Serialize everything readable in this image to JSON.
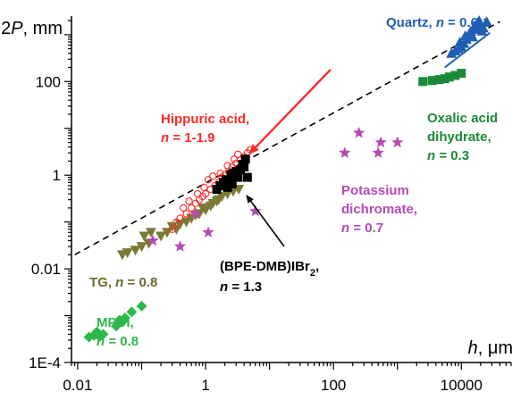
{
  "chart_data": {
    "type": "scatter",
    "title": "",
    "xlabel": {
      "symbol": "h",
      "unit": "μm"
    },
    "ylabel": {
      "symbol": "2P",
      "unit": "mm"
    },
    "x_scale": "log",
    "y_scale": "log",
    "xlim": [
      0.008,
      60000
    ],
    "ylim": [
      0.0001,
      2500
    ],
    "x_ticks": [
      {
        "value": 0.01,
        "label": "0.01"
      },
      {
        "value": 1,
        "label": "1"
      },
      {
        "value": 100,
        "label": "100"
      },
      {
        "value": 10000,
        "label": "10000"
      }
    ],
    "y_ticks": [
      {
        "value": 0.0001,
        "label": "1E-4"
      },
      {
        "value": 0.01,
        "label": "0.01"
      },
      {
        "value": 1,
        "label": "1"
      },
      {
        "value": 100,
        "label": "100"
      }
    ],
    "grid": false,
    "legend": "none",
    "reference_line": {
      "style": "dashed",
      "color": "#000000",
      "points": [
        [
          0.009,
          0.02
        ],
        [
          40000,
          1900
        ]
      ]
    },
    "series": [
      {
        "key": "mpdi",
        "marker": "diamond",
        "color": "#2db84a",
        "annotation": {
          "lines": [
            [
              "MPDI,"
            ],
            [
              "n",
              " = 0.8"
            ]
          ]
        },
        "points": [
          [
            0.015,
            0.00035
          ],
          [
            0.018,
            0.00038
          ],
          [
            0.022,
            0.00036
          ],
          [
            0.025,
            0.0004
          ],
          [
            0.02,
            0.00045
          ],
          [
            0.04,
            0.0006
          ],
          [
            0.045,
            0.0008
          ],
          [
            0.05,
            0.00075
          ],
          [
            0.055,
            0.0009
          ],
          [
            0.07,
            0.0012
          ],
          [
            0.1,
            0.0016
          ]
        ]
      },
      {
        "key": "tg",
        "marker": "triangle-down",
        "color": "#7a7a35",
        "annotation": {
          "lines": [
            [
              "TG, ",
              "n",
              " = 0.8"
            ]
          ]
        },
        "points": [
          [
            0.05,
            0.02
          ],
          [
            0.06,
            0.022
          ],
          [
            0.08,
            0.025
          ],
          [
            0.1,
            0.03
          ],
          [
            0.13,
            0.035
          ],
          [
            0.11,
            0.05
          ],
          [
            0.14,
            0.06
          ],
          [
            0.2,
            0.05
          ],
          [
            0.25,
            0.06
          ],
          [
            0.3,
            0.08
          ],
          [
            0.35,
            0.07
          ],
          [
            0.4,
            0.09
          ],
          [
            0.5,
            0.1
          ],
          [
            0.6,
            0.12
          ],
          [
            0.7,
            0.14
          ],
          [
            0.8,
            0.15
          ],
          [
            1,
            0.18
          ],
          [
            1.2,
            0.22
          ],
          [
            1.5,
            0.28
          ],
          [
            1.8,
            0.35
          ],
          [
            2.2,
            0.4
          ],
          [
            2.7,
            0.45
          ],
          [
            3.3,
            0.5
          ],
          [
            0.9,
            0.2
          ],
          [
            1.3,
            0.25
          ],
          [
            1.6,
            0.3
          ],
          [
            2.5,
            0.55
          ]
        ]
      },
      {
        "key": "hippuric",
        "marker": "circle-open",
        "color": "#ff2a2a",
        "annotation": {
          "lines": [
            [
              "Hippuric acid,"
            ],
            [
              "n",
              " = 1-1.9"
            ]
          ]
        },
        "line_segment": [
          [
            5,
            3
          ],
          [
            90,
            180
          ]
        ],
        "points": [
          [
            0.3,
            0.07
          ],
          [
            0.35,
            0.1
          ],
          [
            0.4,
            0.12
          ],
          [
            0.5,
            0.15
          ],
          [
            0.6,
            0.2
          ],
          [
            0.7,
            0.25
          ],
          [
            0.8,
            0.3
          ],
          [
            0.9,
            0.35
          ],
          [
            1,
            0.4
          ],
          [
            1.2,
            0.5
          ],
          [
            1.4,
            0.6
          ],
          [
            1.6,
            0.7
          ],
          [
            1.8,
            0.9
          ],
          [
            2,
            1
          ],
          [
            2.3,
            1.2
          ],
          [
            2.6,
            1.5
          ],
          [
            3,
            1.8
          ],
          [
            3.5,
            2.1
          ],
          [
            4,
            2.5
          ],
          [
            4.5,
            3
          ],
          [
            5,
            3.5
          ],
          [
            0.45,
            0.2
          ],
          [
            0.55,
            0.28
          ],
          [
            0.75,
            0.4
          ],
          [
            0.95,
            0.55
          ],
          [
            1.1,
            0.8
          ],
          [
            1.3,
            0.95
          ],
          [
            1.7,
            1.1
          ],
          [
            2.2,
            1.6
          ],
          [
            2.8,
            2.2
          ],
          [
            3.2,
            2.8
          ]
        ]
      },
      {
        "key": "bpe",
        "marker": "square",
        "color": "#000000",
        "annotation": {
          "lines": [
            [
              "(BPE-DMB)IBr",
              "2",
              ","
            ],
            [
              "n",
              " = 1.3"
            ]
          ]
        },
        "points": [
          [
            1.5,
            0.5
          ],
          [
            1.7,
            0.6
          ],
          [
            1.9,
            0.7
          ],
          [
            2.1,
            0.8
          ],
          [
            2.5,
            1
          ],
          [
            2.8,
            1.1
          ],
          [
            3,
            1.2
          ],
          [
            3.5,
            1.3
          ],
          [
            4,
            1.5
          ],
          [
            2.2,
            0.55
          ],
          [
            2.6,
            0.65
          ],
          [
            3.2,
            0.9
          ],
          [
            3.8,
            1.7
          ],
          [
            4.2,
            2.2
          ],
          [
            4.5,
            0.9
          ]
        ]
      },
      {
        "key": "potassium",
        "marker": "star",
        "color": "#b44bb4",
        "annotation": {
          "lines": [
            [
              "Potassium"
            ],
            [
              "dichromate,"
            ],
            [
              "n",
              " = 0.7"
            ]
          ]
        },
        "points": [
          [
            0.15,
            0.04
          ],
          [
            0.4,
            0.03
          ],
          [
            0.7,
            0.15
          ],
          [
            1.1,
            0.06
          ],
          [
            6,
            0.17
          ],
          [
            150,
            3
          ],
          [
            250,
            8
          ],
          [
            500,
            3
          ],
          [
            550,
            5
          ],
          [
            1000,
            5
          ]
        ]
      },
      {
        "key": "oxalic",
        "marker": "square",
        "color": "#1a8a3a",
        "annotation": {
          "lines": [
            [
              "Oxalic acid"
            ],
            [
              "dihydrate,"
            ],
            [
              "n",
              " = 0.3"
            ]
          ]
        },
        "points": [
          [
            2500,
            100
          ],
          [
            3500,
            105
          ],
          [
            4500,
            110
          ],
          [
            5500,
            115
          ],
          [
            6500,
            125
          ],
          [
            8000,
            135
          ],
          [
            10000,
            150
          ]
        ]
      },
      {
        "key": "quartz",
        "marker": "triangle-up",
        "color": "#1f5fb4",
        "annotation": {
          "lines": [
            [
              "Quartz, ",
              "n",
              " = 0.6-1"
            ]
          ]
        },
        "line_segment": [
          [
            5500,
            200
          ],
          [
            28000,
            1100
          ]
        ],
        "points": [
          [
            7000,
            400
          ],
          [
            8000,
            450
          ],
          [
            9000,
            500
          ],
          [
            10000,
            550
          ],
          [
            11000,
            650
          ],
          [
            12000,
            800
          ],
          [
            13000,
            1000
          ],
          [
            14000,
            1200
          ],
          [
            15000,
            900
          ],
          [
            16000,
            1500
          ],
          [
            17000,
            1300
          ],
          [
            18000,
            1800
          ],
          [
            20000,
            1600
          ],
          [
            22000,
            1400
          ],
          [
            25000,
            1900
          ],
          [
            9500,
            700
          ],
          [
            11500,
            950
          ],
          [
            13500,
            1100
          ],
          [
            19000,
            2000
          ],
          [
            21000,
            1200
          ]
        ]
      }
    ]
  }
}
